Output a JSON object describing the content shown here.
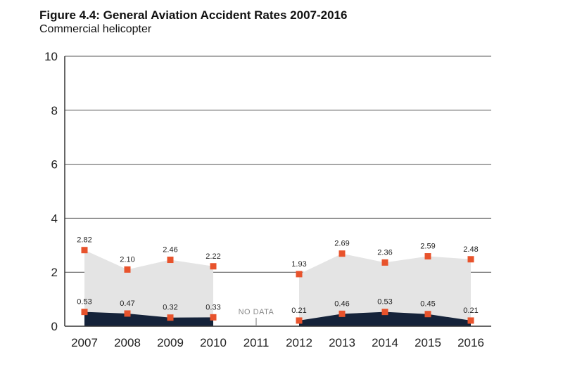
{
  "header": {
    "title": "Figure 4.4: General Aviation Accident Rates 2007-2016",
    "subtitle": "Commercial helicopter"
  },
  "colors": {
    "upper_area": "#e4e4e4",
    "lower_area": "#15233a",
    "marker": "#e8532c",
    "gridline": "#555555",
    "text": "#222222"
  },
  "chart_data": {
    "type": "area",
    "categories": [
      "2007",
      "2008",
      "2009",
      "2010",
      "2011",
      "2012",
      "2013",
      "2014",
      "2015",
      "2016"
    ],
    "series": [
      {
        "values": [
          2.82,
          2.1,
          2.46,
          2.22,
          null,
          1.93,
          2.69,
          2.36,
          2.59,
          2.48
        ]
      },
      {
        "values": [
          0.53,
          0.47,
          0.32,
          0.33,
          null,
          0.21,
          0.46,
          0.53,
          0.45,
          0.21
        ]
      }
    ],
    "data_labels": {
      "upper": [
        "2.82",
        "2.10",
        "2.46",
        "2.22",
        "",
        "1.93",
        "2.69",
        "2.36",
        "2.59",
        "2.48"
      ],
      "lower": [
        "0.53",
        "0.47",
        "0.32",
        "0.33",
        "",
        "0.21",
        "0.46",
        "0.53",
        "0.45",
        "0.21"
      ]
    },
    "annotation": "NO DATA",
    "annotation_category": "2011",
    "yticks": [
      "0",
      "2",
      "4",
      "6",
      "8",
      "10"
    ],
    "ylim": [
      0,
      10
    ],
    "grid": true
  }
}
